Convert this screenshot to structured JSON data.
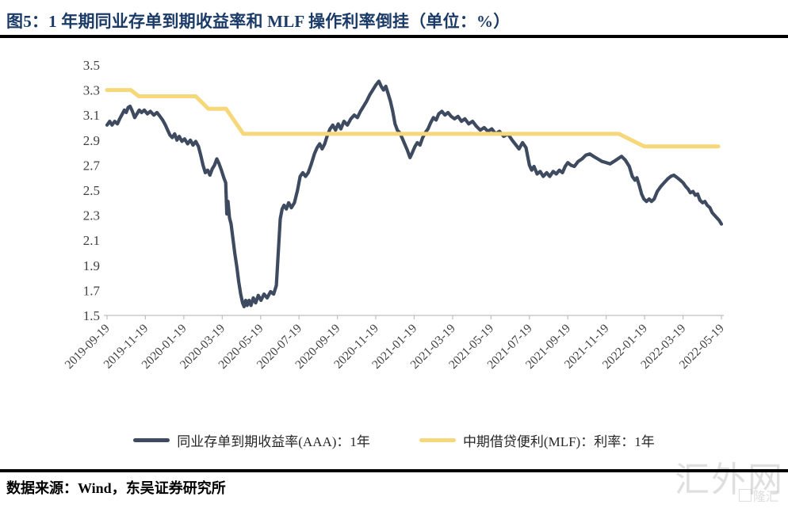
{
  "header": {
    "title": "图5：1 年期同业存单到期收益率和 MLF 操作利率倒挂（单位：%）"
  },
  "footer": {
    "source": "数据来源：Wind，东吴证券研究所"
  },
  "watermark": {
    "main": "汇外网",
    "small": "隆汇"
  },
  "colors": {
    "title_navy": "#1a3a68",
    "ncd_line": "#3d4a5f",
    "mlf_line": "#f6d87a",
    "axis_line": "#bfbfbf",
    "axis_text": "#404040",
    "rule_black": "#000000"
  },
  "chart_data": {
    "type": "line",
    "title": "1年期同业存单到期收益率和MLF操作利率倒挂",
    "unit": "%",
    "grid": false,
    "legend_position": "bottom",
    "ylim": [
      1.5,
      3.5
    ],
    "y_tick_labels": [
      "3.5",
      "3.3",
      "3.1",
      "2.9",
      "2.7",
      "2.5",
      "2.3",
      "2.1",
      "1.9",
      "1.7",
      "1.5"
    ],
    "x_tick_labels": [
      "2019-09-19",
      "2019-11-19",
      "2020-01-19",
      "2020-03-19",
      "2020-05-19",
      "2020-07-19",
      "2020-09-19",
      "2020-11-19",
      "2021-01-19",
      "2021-03-19",
      "2021-05-19",
      "2021-07-19",
      "2021-09-19",
      "2021-11-19",
      "2022-01-19",
      "2022-03-19",
      "2022-05-19"
    ],
    "x_axis_note": "x unit = tick index, one tick per 2 months from 2019-09-19",
    "series": [
      {
        "name": "同业存单到期收益率(AAA)：1年",
        "color": "#3d4a5f",
        "width": 4.2,
        "points": [
          [
            0,
            3.02
          ],
          [
            0.07,
            3.05
          ],
          [
            0.13,
            3.02
          ],
          [
            0.2,
            3.05
          ],
          [
            0.27,
            3.03
          ],
          [
            0.33,
            3.07
          ],
          [
            0.4,
            3.11
          ],
          [
            0.45,
            3.14
          ],
          [
            0.5,
            3.12
          ],
          [
            0.55,
            3.16
          ],
          [
            0.6,
            3.17
          ],
          [
            0.66,
            3.13
          ],
          [
            0.72,
            3.08
          ],
          [
            0.78,
            3.11
          ],
          [
            0.84,
            3.14
          ],
          [
            0.9,
            3.12
          ],
          [
            0.97,
            3.14
          ],
          [
            1.05,
            3.11
          ],
          [
            1.13,
            3.13
          ],
          [
            1.22,
            3.1
          ],
          [
            1.3,
            3.12
          ],
          [
            1.38,
            3.09
          ],
          [
            1.45,
            3.06
          ],
          [
            1.52,
            3.02
          ],
          [
            1.58,
            2.98
          ],
          [
            1.64,
            2.94
          ],
          [
            1.7,
            2.92
          ],
          [
            1.76,
            2.95
          ],
          [
            1.82,
            2.9
          ],
          [
            1.88,
            2.93
          ],
          [
            1.95,
            2.89
          ],
          [
            2.02,
            2.91
          ],
          [
            2.1,
            2.87
          ],
          [
            2.17,
            2.9
          ],
          [
            2.24,
            2.86
          ],
          [
            2.31,
            2.89
          ],
          [
            2.38,
            2.85
          ],
          [
            2.44,
            2.78
          ],
          [
            2.5,
            2.7
          ],
          [
            2.56,
            2.64
          ],
          [
            2.62,
            2.66
          ],
          [
            2.68,
            2.62
          ],
          [
            2.74,
            2.67
          ],
          [
            2.8,
            2.7
          ],
          [
            2.86,
            2.75
          ],
          [
            2.92,
            2.71
          ],
          [
            2.98,
            2.66
          ],
          [
            3.04,
            2.6
          ],
          [
            3.09,
            2.56
          ],
          [
            3.12,
            2.31
          ],
          [
            3.15,
            2.41
          ],
          [
            3.19,
            2.28
          ],
          [
            3.23,
            2.23
          ],
          [
            3.28,
            2.11
          ],
          [
            3.33,
            1.99
          ],
          [
            3.38,
            1.89
          ],
          [
            3.43,
            1.77
          ],
          [
            3.48,
            1.67
          ],
          [
            3.53,
            1.6
          ],
          [
            3.57,
            1.57
          ],
          [
            3.61,
            1.62
          ],
          [
            3.65,
            1.58
          ],
          [
            3.7,
            1.62
          ],
          [
            3.75,
            1.58
          ],
          [
            3.81,
            1.64
          ],
          [
            3.87,
            1.6
          ],
          [
            3.94,
            1.66
          ],
          [
            4.01,
            1.62
          ],
          [
            4.09,
            1.67
          ],
          [
            4.17,
            1.64
          ],
          [
            4.26,
            1.69
          ],
          [
            4.34,
            1.67
          ],
          [
            4.41,
            1.74
          ],
          [
            4.46,
            2.0
          ],
          [
            4.51,
            2.27
          ],
          [
            4.56,
            2.35
          ],
          [
            4.61,
            2.38
          ],
          [
            4.67,
            2.35
          ],
          [
            4.73,
            2.4
          ],
          [
            4.8,
            2.36
          ],
          [
            4.88,
            2.4
          ],
          [
            4.96,
            2.5
          ],
          [
            5.03,
            2.61
          ],
          [
            5.1,
            2.64
          ],
          [
            5.17,
            2.61
          ],
          [
            5.24,
            2.64
          ],
          [
            5.32,
            2.71
          ],
          [
            5.4,
            2.79
          ],
          [
            5.47,
            2.84
          ],
          [
            5.54,
            2.87
          ],
          [
            5.6,
            2.83
          ],
          [
            5.67,
            2.87
          ],
          [
            5.74,
            2.94
          ],
          [
            5.81,
            2.99
          ],
          [
            5.88,
            3.02
          ],
          [
            5.95,
            2.98
          ],
          [
            6.02,
            3.03
          ],
          [
            6.09,
            2.99
          ],
          [
            6.17,
            3.05
          ],
          [
            6.26,
            3.02
          ],
          [
            6.35,
            3.07
          ],
          [
            6.44,
            3.1
          ],
          [
            6.52,
            3.08
          ],
          [
            6.6,
            3.13
          ],
          [
            6.68,
            3.17
          ],
          [
            6.76,
            3.21
          ],
          [
            6.84,
            3.26
          ],
          [
            6.92,
            3.3
          ],
          [
            7.0,
            3.34
          ],
          [
            7.08,
            3.37
          ],
          [
            7.14,
            3.33
          ],
          [
            7.2,
            3.3
          ],
          [
            7.26,
            3.33
          ],
          [
            7.32,
            3.27
          ],
          [
            7.38,
            3.21
          ],
          [
            7.44,
            3.13
          ],
          [
            7.5,
            3.03
          ],
          [
            7.56,
            2.98
          ],
          [
            7.62,
            2.96
          ],
          [
            7.68,
            2.92
          ],
          [
            7.75,
            2.87
          ],
          [
            7.82,
            2.82
          ],
          [
            7.89,
            2.76
          ],
          [
            7.95,
            2.8
          ],
          [
            8.02,
            2.85
          ],
          [
            8.08,
            2.88
          ],
          [
            8.15,
            2.86
          ],
          [
            8.22,
            2.92
          ],
          [
            8.29,
            2.96
          ],
          [
            8.36,
            2.99
          ],
          [
            8.43,
            3.04
          ],
          [
            8.5,
            3.08
          ],
          [
            8.57,
            3.06
          ],
          [
            8.64,
            3.11
          ],
          [
            8.72,
            3.13
          ],
          [
            8.8,
            3.1
          ],
          [
            8.88,
            3.12
          ],
          [
            8.96,
            3.09
          ],
          [
            9.05,
            3.07
          ],
          [
            9.14,
            3.09
          ],
          [
            9.23,
            3.05
          ],
          [
            9.32,
            3.07
          ],
          [
            9.42,
            3.03
          ],
          [
            9.52,
            3.05
          ],
          [
            9.62,
            3.01
          ],
          [
            9.72,
            2.98
          ],
          [
            9.82,
            3.0
          ],
          [
            9.92,
            2.97
          ],
          [
            10.02,
            2.99
          ],
          [
            10.12,
            2.95
          ],
          [
            10.22,
            2.97
          ],
          [
            10.33,
            2.93
          ],
          [
            10.44,
            2.95
          ],
          [
            10.55,
            2.9
          ],
          [
            10.65,
            2.86
          ],
          [
            10.73,
            2.83
          ],
          [
            10.82,
            2.88
          ],
          [
            10.91,
            2.84
          ],
          [
            11.0,
            2.7
          ],
          [
            11.06,
            2.66
          ],
          [
            11.12,
            2.69
          ],
          [
            11.2,
            2.63
          ],
          [
            11.28,
            2.65
          ],
          [
            11.36,
            2.61
          ],
          [
            11.45,
            2.64
          ],
          [
            11.53,
            2.61
          ],
          [
            11.62,
            2.65
          ],
          [
            11.7,
            2.63
          ],
          [
            11.78,
            2.66
          ],
          [
            11.86,
            2.64
          ],
          [
            11.93,
            2.69
          ],
          [
            12.0,
            2.72
          ],
          [
            12.08,
            2.7
          ],
          [
            12.17,
            2.69
          ],
          [
            12.27,
            2.73
          ],
          [
            12.37,
            2.75
          ],
          [
            12.47,
            2.78
          ],
          [
            12.57,
            2.79
          ],
          [
            12.67,
            2.77
          ],
          [
            12.78,
            2.75
          ],
          [
            12.89,
            2.73
          ],
          [
            13.0,
            2.72
          ],
          [
            13.1,
            2.71
          ],
          [
            13.2,
            2.73
          ],
          [
            13.3,
            2.75
          ],
          [
            13.4,
            2.77
          ],
          [
            13.5,
            2.74
          ],
          [
            13.6,
            2.69
          ],
          [
            13.68,
            2.61
          ],
          [
            13.75,
            2.58
          ],
          [
            13.8,
            2.6
          ],
          [
            13.86,
            2.54
          ],
          [
            13.92,
            2.47
          ],
          [
            13.98,
            2.43
          ],
          [
            14.05,
            2.41
          ],
          [
            14.12,
            2.43
          ],
          [
            14.18,
            2.41
          ],
          [
            14.25,
            2.43
          ],
          [
            14.33,
            2.49
          ],
          [
            14.42,
            2.53
          ],
          [
            14.51,
            2.56
          ],
          [
            14.6,
            2.59
          ],
          [
            14.68,
            2.61
          ],
          [
            14.76,
            2.62
          ],
          [
            14.85,
            2.6
          ],
          [
            14.93,
            2.58
          ],
          [
            15.0,
            2.56
          ],
          [
            15.07,
            2.53
          ],
          [
            15.13,
            2.51
          ],
          [
            15.19,
            2.48
          ],
          [
            15.26,
            2.49
          ],
          [
            15.32,
            2.46
          ],
          [
            15.38,
            2.47
          ],
          [
            15.44,
            2.42
          ],
          [
            15.51,
            2.4
          ],
          [
            15.57,
            2.41
          ],
          [
            15.63,
            2.38
          ],
          [
            15.7,
            2.36
          ],
          [
            15.76,
            2.32
          ],
          [
            15.82,
            2.3
          ],
          [
            15.88,
            2.28
          ],
          [
            15.94,
            2.26
          ],
          [
            16.0,
            2.23
          ]
        ]
      },
      {
        "name": "中期借贷便利(MLF)：利率：1年",
        "color": "#f6d87a",
        "width": 5,
        "points": [
          [
            0,
            3.3
          ],
          [
            0.62,
            3.3
          ],
          [
            0.83,
            3.25
          ],
          [
            2.31,
            3.25
          ],
          [
            2.64,
            3.15
          ],
          [
            3.1,
            3.15
          ],
          [
            3.55,
            2.95
          ],
          [
            13.33,
            2.95
          ],
          [
            13.99,
            2.85
          ],
          [
            15.92,
            2.85
          ]
        ]
      }
    ]
  }
}
